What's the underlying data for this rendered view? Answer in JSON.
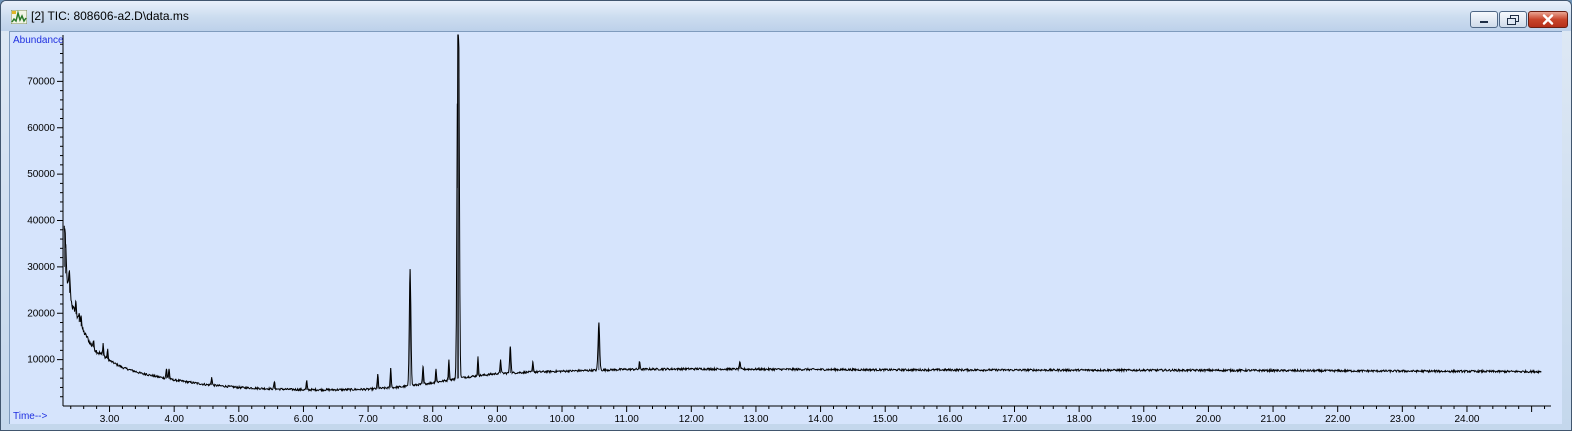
{
  "window": {
    "title": "[2] TIC: 808606-a2.D\\data.ms",
    "icon": "tic-chromatogram-icon"
  },
  "colors": {
    "plot_background": "#d6e4fc",
    "trace": "#000000",
    "axis_name": "#1f2fe0"
  },
  "chart_data": {
    "type": "line",
    "title": "[2] TIC: 808606-a2.D\\data.ms",
    "ylabel": "Abundance",
    "xlabel": "Time-->",
    "xlim": [
      2.28,
      25.3
    ],
    "ylim": [
      0,
      80000
    ],
    "xticks": [
      "3.00",
      "4.00",
      "5.00",
      "6.00",
      "7.00",
      "8.00",
      "9.00",
      "10.00",
      "11.00",
      "12.00",
      "13.00",
      "14.00",
      "15.00",
      "16.00",
      "17.00",
      "18.00",
      "19.00",
      "20.00",
      "21.00",
      "22.00",
      "23.00",
      "24.00"
    ],
    "yticks": [
      "10000",
      "20000",
      "30000",
      "40000",
      "50000",
      "60000",
      "70000"
    ],
    "grid": false,
    "legend": "none",
    "baseline": {
      "x": [
        2.3,
        2.4,
        2.5,
        2.6,
        2.7,
        2.8,
        3.0,
        3.2,
        3.5,
        4.0,
        4.5,
        5.0,
        5.5,
        6.0,
        6.5,
        7.0,
        7.5,
        8.0,
        8.5,
        9.0,
        9.5,
        10.0,
        10.5,
        11.0,
        12.0,
        15.0,
        20.0,
        25.3
      ],
      "y": [
        30000,
        23000,
        19000,
        16000,
        13500,
        11800,
        9800,
        8300,
        7000,
        5600,
        4600,
        4000,
        3700,
        3500,
        3500,
        3600,
        4100,
        5000,
        6200,
        7000,
        7300,
        7500,
        7700,
        7900,
        8000,
        7800,
        7700,
        7400
      ]
    },
    "noise_amplitude": 450,
    "peaks": [
      {
        "rt": 2.3,
        "height": 38000,
        "width": 0.012
      },
      {
        "rt": 2.32,
        "height": 34000,
        "width": 0.01
      },
      {
        "rt": 2.38,
        "height": 29000,
        "width": 0.01
      },
      {
        "rt": 2.43,
        "height": 21000,
        "width": 0.008
      },
      {
        "rt": 2.48,
        "height": 22500,
        "width": 0.008
      },
      {
        "rt": 2.53,
        "height": 20000,
        "width": 0.008
      },
      {
        "rt": 2.56,
        "height": 19500,
        "width": 0.008
      },
      {
        "rt": 2.65,
        "height": 15000,
        "width": 0.008
      },
      {
        "rt": 2.75,
        "height": 14000,
        "width": 0.008
      },
      {
        "rt": 2.9,
        "height": 13500,
        "width": 0.008
      },
      {
        "rt": 2.97,
        "height": 12000,
        "width": 0.008
      },
      {
        "rt": 3.57,
        "height": 7000,
        "width": 0.008
      },
      {
        "rt": 3.88,
        "height": 8000,
        "width": 0.008
      },
      {
        "rt": 3.92,
        "height": 8000,
        "width": 0.008
      },
      {
        "rt": 4.58,
        "height": 6200,
        "width": 0.008
      },
      {
        "rt": 5.55,
        "height": 5200,
        "width": 0.008
      },
      {
        "rt": 6.05,
        "height": 5400,
        "width": 0.008
      },
      {
        "rt": 7.15,
        "height": 6800,
        "width": 0.008
      },
      {
        "rt": 7.35,
        "height": 8200,
        "width": 0.008
      },
      {
        "rt": 7.65,
        "height": 29500,
        "width": 0.012
      },
      {
        "rt": 7.85,
        "height": 8500,
        "width": 0.008
      },
      {
        "rt": 8.05,
        "height": 8000,
        "width": 0.008
      },
      {
        "rt": 8.25,
        "height": 10000,
        "width": 0.008
      },
      {
        "rt": 8.38,
        "height": 47000,
        "width": 0.01
      },
      {
        "rt": 8.4,
        "height": 79000,
        "width": 0.012
      },
      {
        "rt": 8.7,
        "height": 10500,
        "width": 0.008
      },
      {
        "rt": 9.05,
        "height": 10000,
        "width": 0.008
      },
      {
        "rt": 9.2,
        "height": 12800,
        "width": 0.01
      },
      {
        "rt": 9.55,
        "height": 9500,
        "width": 0.008
      },
      {
        "rt": 10.57,
        "height": 18000,
        "width": 0.012
      },
      {
        "rt": 11.2,
        "height": 9500,
        "width": 0.008
      },
      {
        "rt": 12.75,
        "height": 9500,
        "width": 0.008
      }
    ]
  }
}
